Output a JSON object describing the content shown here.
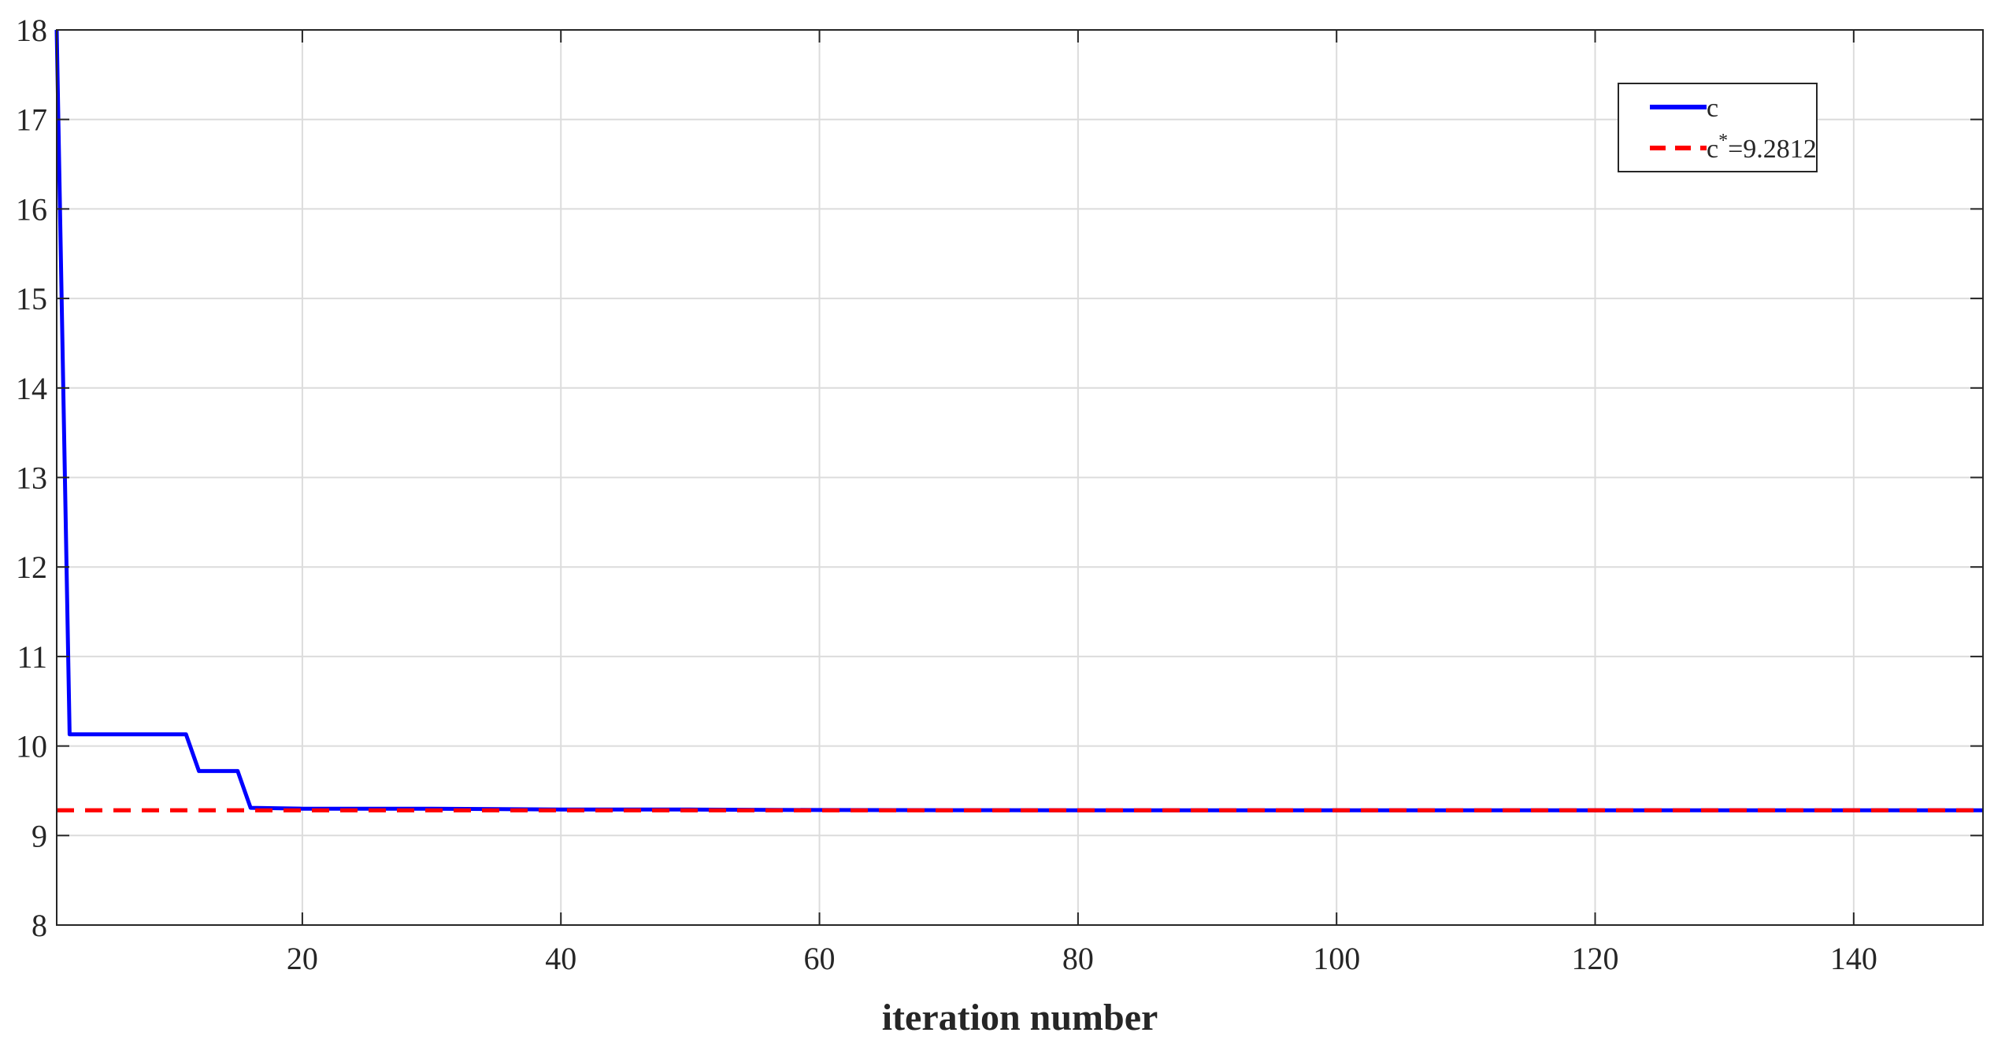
{
  "chart_data": {
    "type": "line",
    "title": "",
    "xlabel": "iteration number",
    "ylabel": "",
    "xlim": [
      1,
      150
    ],
    "ylim": [
      8,
      18
    ],
    "xticks": [
      20,
      40,
      60,
      80,
      100,
      120,
      140
    ],
    "yticks": [
      8,
      9,
      10,
      11,
      12,
      13,
      14,
      15,
      16,
      17,
      18
    ],
    "grid": true,
    "legend_position": "top-right",
    "series": [
      {
        "name": "c",
        "color": "#0000ff",
        "style": "solid",
        "x": [
          1,
          2,
          11,
          12,
          15,
          16,
          20,
          30,
          40,
          50,
          60,
          70,
          80,
          90,
          100,
          110,
          120,
          130,
          140,
          150
        ],
        "y": [
          18,
          10.13,
          10.13,
          9.72,
          9.72,
          9.31,
          9.3,
          9.3,
          9.29,
          9.29,
          9.285,
          9.283,
          9.282,
          9.282,
          9.2815,
          9.2813,
          9.2812,
          9.2812,
          9.2812,
          9.2812
        ]
      },
      {
        "name": "c*=9.2812",
        "name_base": "c",
        "name_sup": "*",
        "name_rest": "=9.2812",
        "color": "#ff0000",
        "style": "dashed",
        "x": [
          1,
          150
        ],
        "y": [
          9.2812,
          9.2812
        ]
      }
    ]
  }
}
